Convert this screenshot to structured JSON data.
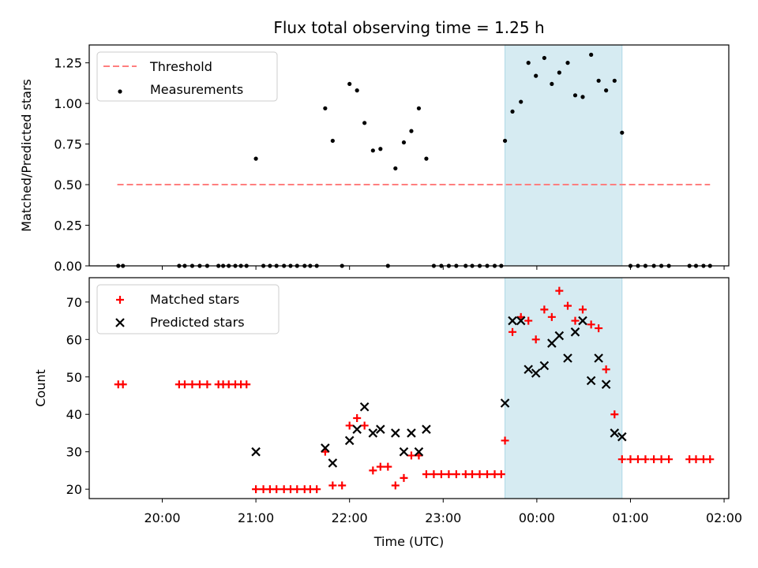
{
  "chart_data": {
    "title": "Flux total observing time = 1.25 h",
    "xlabel": "Time (UTC)",
    "x_unit": "hours since 20:00 UTC",
    "xlim": [
      -0.78,
      6.05
    ],
    "x_ticks": [
      {
        "value": 0,
        "label": "20:00"
      },
      {
        "value": 1,
        "label": "21:00"
      },
      {
        "value": 2,
        "label": "22:00"
      },
      {
        "value": 3,
        "label": "23:00"
      },
      {
        "value": 4,
        "label": "00:00"
      },
      {
        "value": 5,
        "label": "01:00"
      },
      {
        "value": 6,
        "label": "02:00"
      }
    ],
    "highlight_span": {
      "x0": 3.66,
      "x1": 4.91,
      "color": "#add8e6"
    },
    "panels": [
      {
        "id": "ratio",
        "type": "scatter",
        "ylabel": "Matched/Predicted stars",
        "ylim": [
          0,
          1.36
        ],
        "y_ticks": [
          "0.00",
          "0.25",
          "0.50",
          "0.75",
          "1.00",
          "1.25"
        ],
        "y_tick_values": [
          0,
          0.25,
          0.5,
          0.75,
          1.0,
          1.25
        ],
        "legend": [
          "Threshold",
          "Measurements"
        ],
        "threshold": {
          "name": "Threshold",
          "y": 0.5,
          "x_range": [
            -0.48,
            5.85
          ],
          "color": "#ff7f7f"
        },
        "series": [
          {
            "name": "Measurements",
            "color": "#000000",
            "points": [
              [
                -0.47,
                0
              ],
              [
                -0.42,
                0
              ],
              [
                0.18,
                0
              ],
              [
                0.24,
                0
              ],
              [
                0.32,
                0
              ],
              [
                0.4,
                0
              ],
              [
                0.48,
                0
              ],
              [
                0.6,
                0
              ],
              [
                0.65,
                0
              ],
              [
                0.71,
                0
              ],
              [
                0.78,
                0
              ],
              [
                0.84,
                0
              ],
              [
                0.9,
                0
              ],
              [
                1.0,
                0.66
              ],
              [
                1.08,
                0
              ],
              [
                1.15,
                0
              ],
              [
                1.22,
                0
              ],
              [
                1.3,
                0
              ],
              [
                1.37,
                0
              ],
              [
                1.44,
                0
              ],
              [
                1.52,
                0
              ],
              [
                1.58,
                0
              ],
              [
                1.65,
                0
              ],
              [
                1.74,
                0.97
              ],
              [
                1.82,
                0.77
              ],
              [
                1.92,
                0
              ],
              [
                2.0,
                1.12
              ],
              [
                2.08,
                1.08
              ],
              [
                2.16,
                0.88
              ],
              [
                2.25,
                0.71
              ],
              [
                2.33,
                0.72
              ],
              [
                2.41,
                0
              ],
              [
                2.49,
                0.6
              ],
              [
                2.58,
                0.76
              ],
              [
                2.66,
                0.83
              ],
              [
                2.74,
                0.97
              ],
              [
                2.82,
                0.66
              ],
              [
                2.9,
                0
              ],
              [
                2.98,
                0
              ],
              [
                3.06,
                0
              ],
              [
                3.14,
                0
              ],
              [
                3.24,
                0
              ],
              [
                3.31,
                0
              ],
              [
                3.39,
                0
              ],
              [
                3.47,
                0
              ],
              [
                3.55,
                0
              ],
              [
                3.62,
                0
              ],
              [
                3.66,
                0.77
              ],
              [
                3.74,
                0.95
              ],
              [
                3.83,
                1.01
              ],
              [
                3.91,
                1.25
              ],
              [
                3.99,
                1.17
              ],
              [
                4.08,
                1.28
              ],
              [
                4.16,
                1.12
              ],
              [
                4.24,
                1.19
              ],
              [
                4.33,
                1.25
              ],
              [
                4.41,
                1.05
              ],
              [
                4.49,
                1.04
              ],
              [
                4.58,
                1.3
              ],
              [
                4.66,
                1.14
              ],
              [
                4.74,
                1.08
              ],
              [
                4.83,
                1.14
              ],
              [
                4.91,
                0.82
              ],
              [
                5.0,
                0
              ],
              [
                5.08,
                0
              ],
              [
                5.16,
                0
              ],
              [
                5.25,
                0
              ],
              [
                5.33,
                0
              ],
              [
                5.41,
                0
              ],
              [
                5.63,
                0
              ],
              [
                5.7,
                0
              ],
              [
                5.78,
                0
              ],
              [
                5.85,
                0
              ]
            ]
          }
        ]
      },
      {
        "id": "counts",
        "type": "scatter",
        "ylabel": "Count",
        "ylim": [
          17.5,
          76.5
        ],
        "y_ticks": [
          "20",
          "30",
          "40",
          "50",
          "60",
          "70"
        ],
        "y_tick_values": [
          20,
          30,
          40,
          50,
          60,
          70
        ],
        "legend": [
          "Matched stars",
          "Predicted stars"
        ],
        "series": [
          {
            "name": "Matched stars",
            "marker": "plus",
            "color": "#ff0000",
            "points": [
              [
                -0.47,
                48
              ],
              [
                -0.42,
                48
              ],
              [
                0.18,
                48
              ],
              [
                0.24,
                48
              ],
              [
                0.32,
                48
              ],
              [
                0.4,
                48
              ],
              [
                0.48,
                48
              ],
              [
                0.6,
                48
              ],
              [
                0.65,
                48
              ],
              [
                0.71,
                48
              ],
              [
                0.78,
                48
              ],
              [
                0.84,
                48
              ],
              [
                0.9,
                48
              ],
              [
                1.0,
                20
              ],
              [
                1.08,
                20
              ],
              [
                1.15,
                20
              ],
              [
                1.22,
                20
              ],
              [
                1.3,
                20
              ],
              [
                1.37,
                20
              ],
              [
                1.44,
                20
              ],
              [
                1.52,
                20
              ],
              [
                1.58,
                20
              ],
              [
                1.65,
                20
              ],
              [
                1.74,
                30
              ],
              [
                1.82,
                21
              ],
              [
                1.92,
                21
              ],
              [
                2.0,
                37
              ],
              [
                2.08,
                39
              ],
              [
                2.16,
                37
              ],
              [
                2.25,
                25
              ],
              [
                2.33,
                26
              ],
              [
                2.41,
                26
              ],
              [
                2.49,
                21
              ],
              [
                2.58,
                23
              ],
              [
                2.66,
                29
              ],
              [
                2.74,
                29
              ],
              [
                2.82,
                24
              ],
              [
                2.9,
                24
              ],
              [
                2.98,
                24
              ],
              [
                3.06,
                24
              ],
              [
                3.14,
                24
              ],
              [
                3.24,
                24
              ],
              [
                3.31,
                24
              ],
              [
                3.39,
                24
              ],
              [
                3.47,
                24
              ],
              [
                3.55,
                24
              ],
              [
                3.62,
                24
              ],
              [
                3.66,
                33
              ],
              [
                3.74,
                62
              ],
              [
                3.83,
                66
              ],
              [
                3.91,
                65
              ],
              [
                3.99,
                60
              ],
              [
                4.08,
                68
              ],
              [
                4.16,
                66
              ],
              [
                4.24,
                73
              ],
              [
                4.33,
                69
              ],
              [
                4.41,
                65
              ],
              [
                4.49,
                68
              ],
              [
                4.58,
                64
              ],
              [
                4.66,
                63
              ],
              [
                4.74,
                52
              ],
              [
                4.83,
                40
              ],
              [
                4.91,
                28
              ],
              [
                5.0,
                28
              ],
              [
                5.08,
                28
              ],
              [
                5.16,
                28
              ],
              [
                5.25,
                28
              ],
              [
                5.33,
                28
              ],
              [
                5.41,
                28
              ],
              [
                5.63,
                28
              ],
              [
                5.7,
                28
              ],
              [
                5.78,
                28
              ],
              [
                5.85,
                28
              ]
            ]
          },
          {
            "name": "Predicted stars",
            "marker": "x",
            "color": "#000000",
            "points": [
              [
                1.0,
                30
              ],
              [
                1.74,
                31
              ],
              [
                1.82,
                27
              ],
              [
                2.0,
                33
              ],
              [
                2.08,
                36
              ],
              [
                2.16,
                42
              ],
              [
                2.25,
                35
              ],
              [
                2.33,
                36
              ],
              [
                2.49,
                35
              ],
              [
                2.58,
                30
              ],
              [
                2.66,
                35
              ],
              [
                2.74,
                30
              ],
              [
                2.82,
                36
              ],
              [
                3.66,
                43
              ],
              [
                3.74,
                65
              ],
              [
                3.83,
                65
              ],
              [
                3.91,
                52
              ],
              [
                3.99,
                51
              ],
              [
                4.08,
                53
              ],
              [
                4.16,
                59
              ],
              [
                4.24,
                61
              ],
              [
                4.33,
                55
              ],
              [
                4.41,
                62
              ],
              [
                4.49,
                65
              ],
              [
                4.58,
                49
              ],
              [
                4.66,
                55
              ],
              [
                4.74,
                48
              ],
              [
                4.83,
                35
              ],
              [
                4.91,
                34
              ]
            ]
          }
        ]
      }
    ]
  }
}
